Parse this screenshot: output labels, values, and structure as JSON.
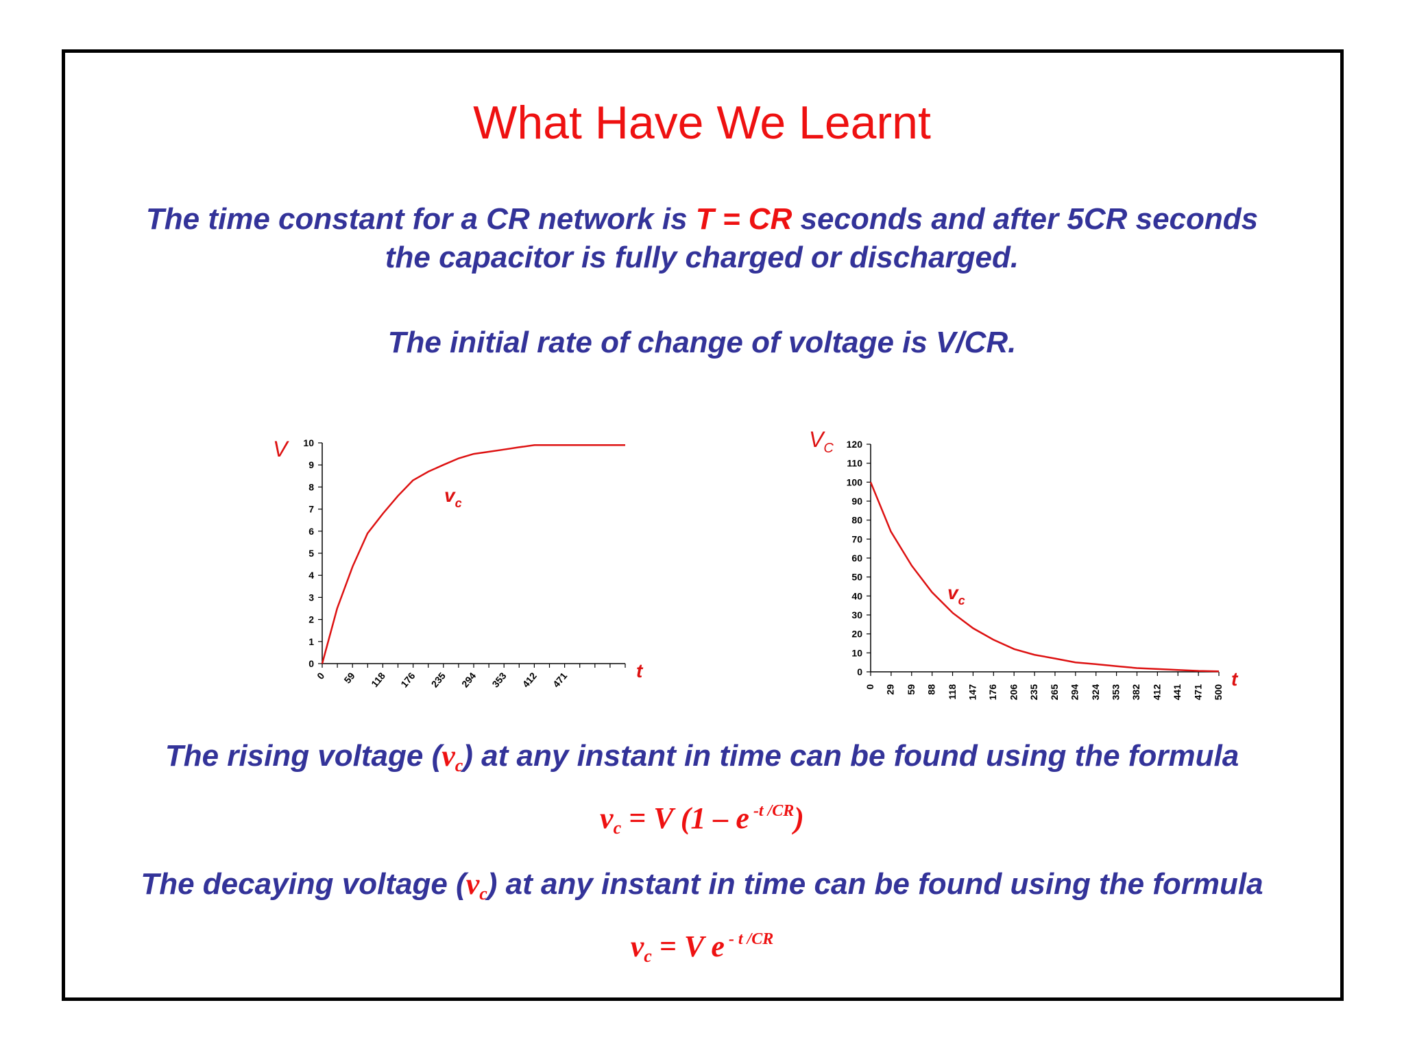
{
  "title": "What Have We Learnt",
  "intro": {
    "line1_a": "The time constant for a CR network is ",
    "line1_b": "T = CR",
    "line1_c": " seconds and after 5CR seconds",
    "line2": "the capacitor is fully charged or discharged."
  },
  "rate_text": "The initial rate of change of voltage is V/CR.",
  "rising": {
    "text_a": "The rising voltage (",
    "v": "v",
    "sub": "c",
    "text_b": ") at any instant in time can be found using the formula",
    "formula": {
      "lhs": "v",
      "lhs_sub": "c",
      "rhs": " = V (1 – e",
      "exp": " -t /CR",
      "close": ")"
    }
  },
  "decaying": {
    "text_a": "The decaying voltage (",
    "v": "v",
    "sub": "c",
    "text_b": ") at any instant in time can be found using the formula",
    "formula": {
      "lhs": "v",
      "lhs_sub": "c",
      "rhs": " = V e",
      "exp": " - t /CR"
    }
  },
  "colors": {
    "title": "#ee1111",
    "text": "#333399",
    "curve": "#dd1111",
    "axis": "#000000"
  },
  "chart_data": [
    {
      "type": "line",
      "ylabel": "V",
      "xlabel": "t",
      "curve_label": "v",
      "curve_label_sub": "c",
      "ylim": [
        0,
        10
      ],
      "xlim": [
        0,
        588
      ],
      "yticks": [
        0,
        1,
        2,
        3,
        4,
        5,
        6,
        7,
        8,
        9,
        10
      ],
      "xtick_labels": [
        "0",
        "59",
        "118",
        "176",
        "235",
        "294",
        "353",
        "412",
        "471"
      ],
      "xtick_values": [
        0,
        59,
        118,
        176,
        235,
        294,
        353,
        412,
        471
      ],
      "series": [
        {
          "x": [
            0,
            29,
            59,
            88,
            118,
            147,
            176,
            206,
            235,
            265,
            294,
            324,
            353,
            382,
            412,
            441,
            471,
            500,
            529,
            559,
            588
          ],
          "values": [
            0,
            2.5,
            4.4,
            5.9,
            6.8,
            7.6,
            8.3,
            8.7,
            9.0,
            9.3,
            9.5,
            9.6,
            9.7,
            9.8,
            9.9,
            9.9,
            9.9,
            9.9,
            9.9,
            9.9,
            9.9
          ]
        }
      ]
    },
    {
      "type": "line",
      "ylabel": "V",
      "ylabel_sub": "C",
      "xlabel": "t",
      "curve_label": "v",
      "curve_label_sub": "c",
      "ylim": [
        0,
        120
      ],
      "xlim": [
        0,
        500
      ],
      "yticks": [
        0,
        10,
        20,
        30,
        40,
        50,
        60,
        70,
        80,
        90,
        100,
        110,
        120
      ],
      "xtick_labels": [
        "0",
        "29",
        "59",
        "88",
        "118",
        "147",
        "176",
        "206",
        "235",
        "265",
        "294",
        "324",
        "353",
        "382",
        "412",
        "441",
        "471",
        "500"
      ],
      "xtick_values": [
        0,
        29,
        59,
        88,
        118,
        147,
        176,
        206,
        235,
        265,
        294,
        324,
        353,
        382,
        412,
        441,
        471,
        500
      ],
      "series": [
        {
          "x": [
            0,
            29,
            59,
            88,
            118,
            147,
            176,
            206,
            235,
            265,
            294,
            324,
            353,
            382,
            412,
            441,
            471,
            500
          ],
          "values": [
            100,
            74,
            56,
            42,
            31,
            23,
            17,
            12,
            9,
            7,
            5,
            4,
            3,
            2,
            1.5,
            1,
            0.5,
            0.3
          ]
        }
      ]
    }
  ]
}
